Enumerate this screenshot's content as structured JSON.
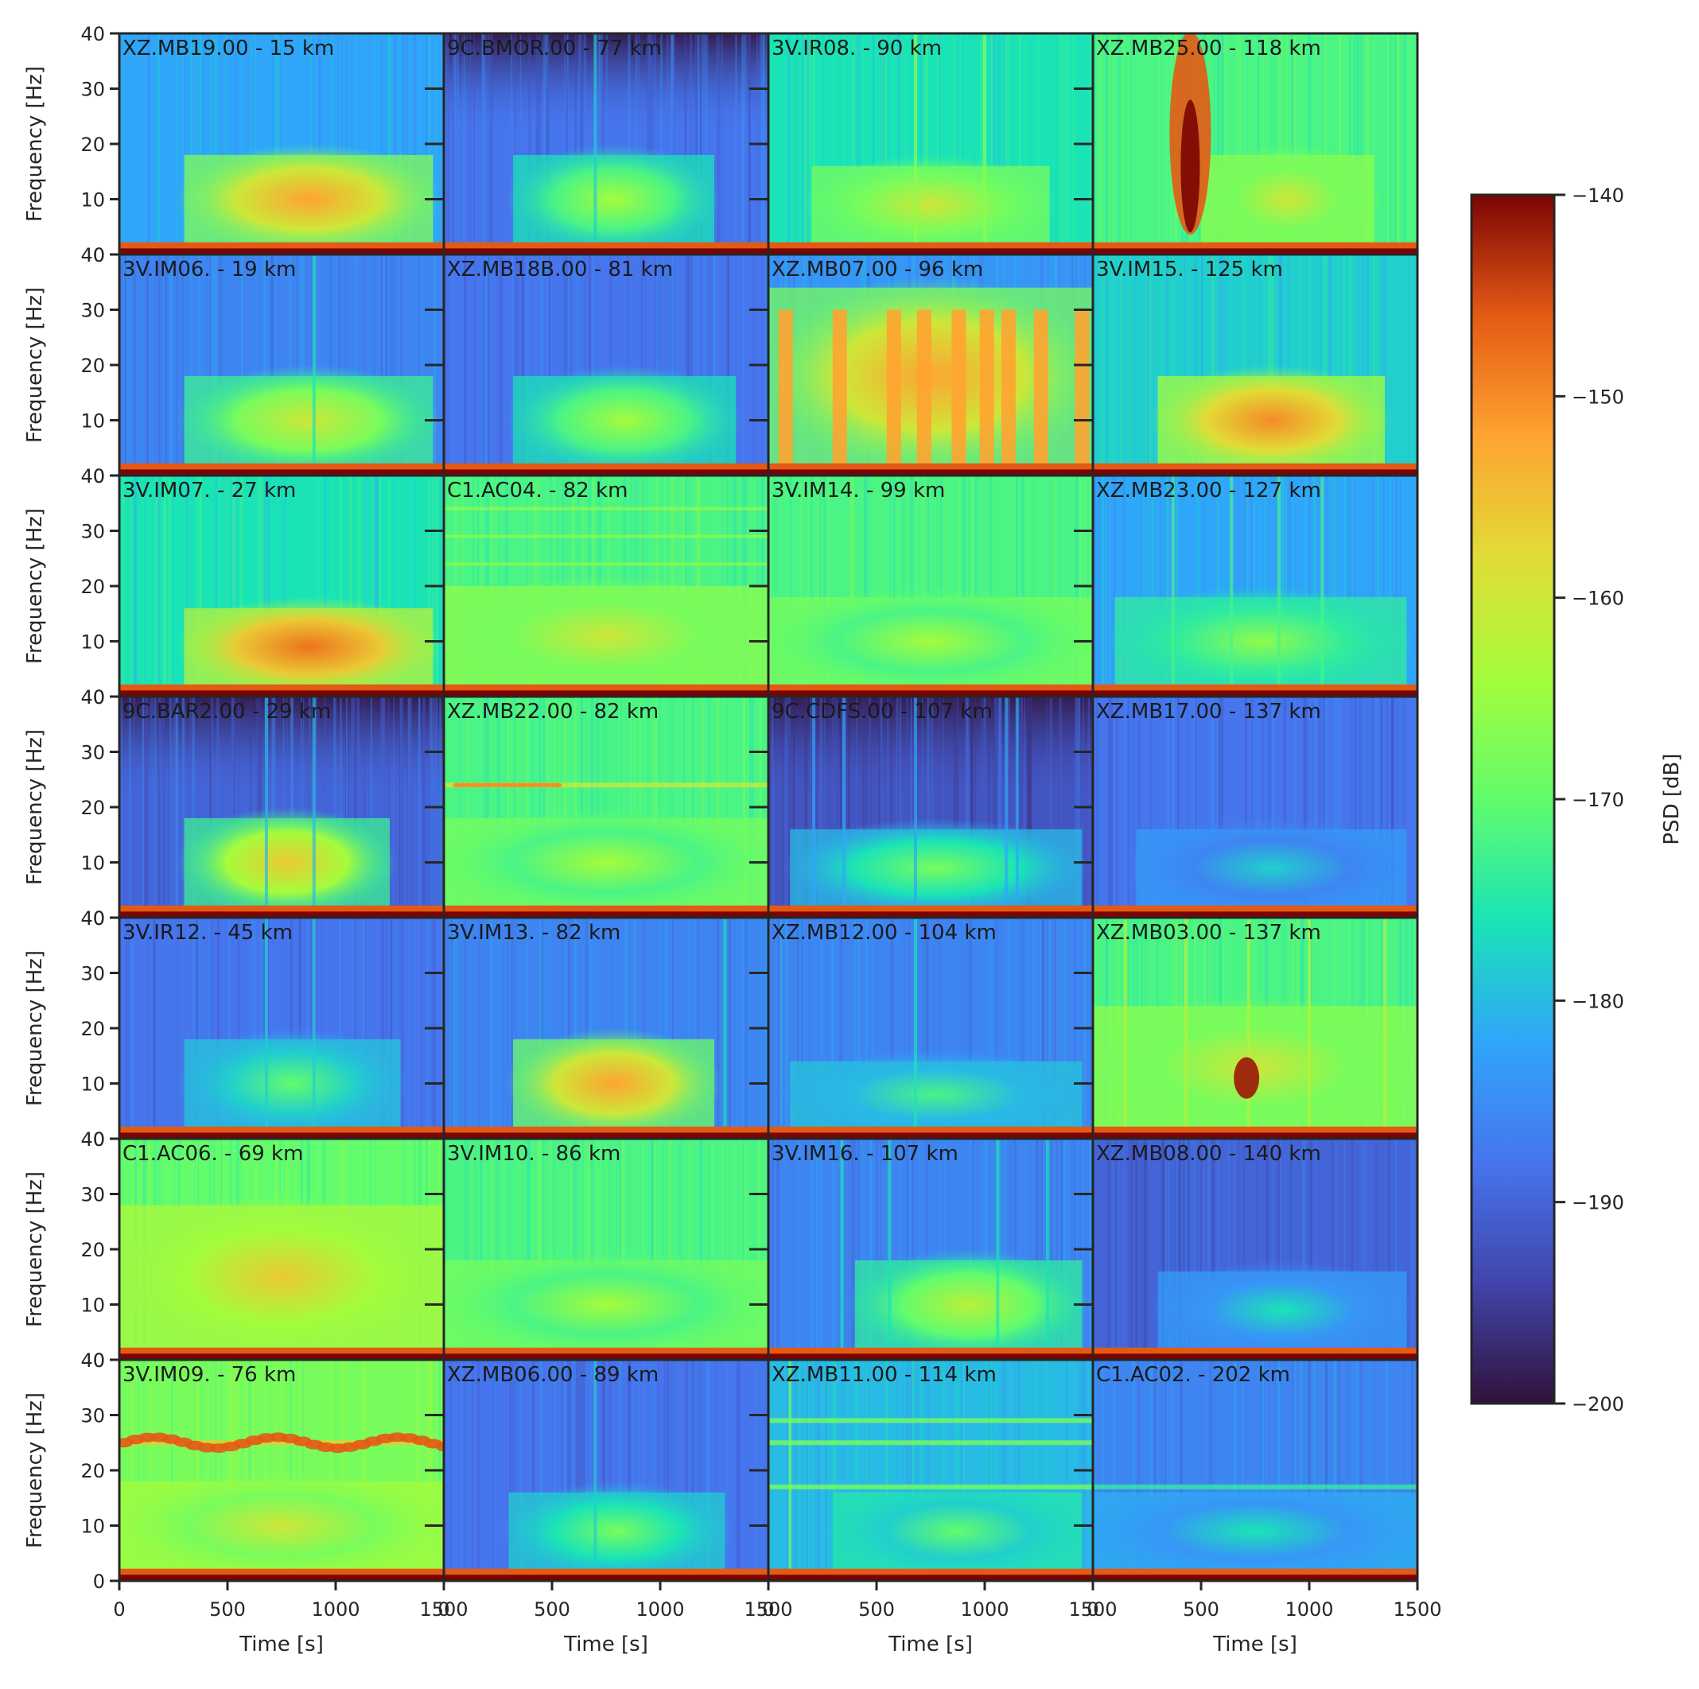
{
  "chart_data": {
    "type": "heatmap",
    "grid": {
      "rows": 7,
      "cols": 4
    },
    "xlabel": "Time [s]",
    "ylabel": "Frequency [Hz]",
    "xlim": [
      0,
      1500
    ],
    "ylim": [
      0,
      40
    ],
    "xticks": [
      0,
      500,
      1000,
      1500
    ],
    "yticks": [
      0,
      10,
      20,
      30,
      40
    ],
    "colorbar": {
      "label": "PSD [dB]",
      "range": [
        -200,
        -140
      ],
      "ticks": [
        -140,
        -150,
        -160,
        -170,
        -180,
        -190,
        -200
      ],
      "tick_labels": [
        "−140",
        "−150",
        "−160",
        "−170",
        "−180",
        "−190",
        "−200"
      ],
      "colormap": "turbo"
    },
    "panels": [
      {
        "label": "XZ.MB19.00 - 15 km",
        "background_psd": -182,
        "energy_psd": -152,
        "energy_band_hz": [
          4,
          14
        ],
        "energy_time_s": [
          300,
          1450
        ],
        "vertical_streaks_s": [],
        "notes": ""
      },
      {
        "label": "9C.BMOR.00 - 77 km",
        "background_psd": -188,
        "energy_psd": -164,
        "energy_band_hz": [
          4,
          14
        ],
        "energy_time_s": [
          320,
          1250
        ],
        "vertical_streaks_s": [
          700
        ],
        "notes": "dark upper band"
      },
      {
        "label": "3V.IR08. - 90 km",
        "background_psd": -176,
        "energy_psd": -160,
        "energy_band_hz": [
          4,
          12
        ],
        "energy_time_s": [
          200,
          1300
        ],
        "vertical_streaks_s": [
          680,
          1000
        ],
        "notes": ""
      },
      {
        "label": "XZ.MB25.00 - 118 km",
        "background_psd": -172,
        "energy_psd": -160,
        "energy_band_hz": [
          4,
          14
        ],
        "energy_time_s": [
          500,
          1300
        ],
        "vertical_streaks_s": [],
        "notes": "strong burst near 450 s"
      },
      {
        "label": "3V.IM06. - 19 km",
        "background_psd": -186,
        "energy_psd": -160,
        "energy_band_hz": [
          4,
          14
        ],
        "energy_time_s": [
          300,
          1450
        ],
        "vertical_streaks_s": [
          900
        ],
        "notes": ""
      },
      {
        "label": "XZ.MB18B.00 - 81 km",
        "background_psd": -188,
        "energy_psd": -164,
        "energy_band_hz": [
          4,
          14
        ],
        "energy_time_s": [
          320,
          1350
        ],
        "vertical_streaks_s": [],
        "notes": ""
      },
      {
        "label": "XZ.MB07.00 - 96 km",
        "background_psd": -184,
        "energy_psd": -152,
        "energy_band_hz": [
          4,
          30
        ],
        "energy_time_s": [
          0,
          1500
        ],
        "vertical_streaks_s": [
          80,
          330,
          580,
          720,
          880,
          1010,
          1110,
          1260,
          1450
        ],
        "notes": "repeating bursts"
      },
      {
        "label": "3V.IM15. - 125 km",
        "background_psd": -178,
        "energy_psd": -150,
        "energy_band_hz": [
          4,
          14
        ],
        "energy_time_s": [
          300,
          1350
        ],
        "vertical_streaks_s": [],
        "notes": ""
      },
      {
        "label": "3V.IM07. - 27 km",
        "background_psd": -176,
        "energy_psd": -148,
        "energy_band_hz": [
          2,
          12
        ],
        "energy_time_s": [
          300,
          1450
        ],
        "vertical_streaks_s": [],
        "notes": ""
      },
      {
        "label": "C1.AC04. - 82 km",
        "background_psd": -172,
        "energy_psd": -160,
        "energy_band_hz": [
          2,
          16
        ],
        "energy_time_s": [
          0,
          1500
        ],
        "vertical_streaks_s": [],
        "notes": "horizontal bands"
      },
      {
        "label": "3V.IM14. - 99 km",
        "background_psd": -172,
        "energy_psd": -164,
        "energy_band_hz": [
          2,
          14
        ],
        "energy_time_s": [
          0,
          1500
        ],
        "vertical_streaks_s": [],
        "notes": ""
      },
      {
        "label": "XZ.MB23.00 - 127 km",
        "background_psd": -182,
        "energy_psd": -166,
        "energy_band_hz": [
          4,
          14
        ],
        "energy_time_s": [
          100,
          1450
        ],
        "vertical_streaks_s": [
          370,
          640,
          860,
          1060
        ],
        "notes": ""
      },
      {
        "label": "9C.BAR2.00 - 29 km",
        "background_psd": -190,
        "energy_psd": -156,
        "energy_band_hz": [
          4,
          14
        ],
        "energy_time_s": [
          300,
          1250
        ],
        "vertical_streaks_s": [
          680,
          900
        ],
        "notes": "dark upper band"
      },
      {
        "label": "XZ.MB22.00 - 82 km",
        "background_psd": -172,
        "energy_psd": -164,
        "energy_band_hz": [
          2,
          14
        ],
        "energy_time_s": [
          0,
          1500
        ],
        "vertical_streaks_s": [],
        "notes": "dotted line near 24 Hz"
      },
      {
        "label": "9C.CDFS.00 - 107 km",
        "background_psd": -192,
        "energy_psd": -168,
        "energy_band_hz": [
          2,
          12
        ],
        "energy_time_s": [
          100,
          1450
        ],
        "vertical_streaks_s": [
          210,
          350,
          680,
          1100,
          1150
        ],
        "notes": "dark upper band"
      },
      {
        "label": "XZ.MB17.00 - 137 km",
        "background_psd": -188,
        "energy_psd": -178,
        "energy_band_hz": [
          2,
          12
        ],
        "energy_time_s": [
          200,
          1450
        ],
        "vertical_streaks_s": [],
        "notes": ""
      },
      {
        "label": "3V.IR12. - 45 km",
        "background_psd": -188,
        "energy_psd": -170,
        "energy_band_hz": [
          4,
          14
        ],
        "energy_time_s": [
          300,
          1300
        ],
        "vertical_streaks_s": [
          680,
          900
        ],
        "notes": ""
      },
      {
        "label": "3V.IM13. - 82 km",
        "background_psd": -186,
        "energy_psd": -152,
        "energy_band_hz": [
          4,
          14
        ],
        "energy_time_s": [
          320,
          1250
        ],
        "vertical_streaks_s": [
          1300
        ],
        "notes": ""
      },
      {
        "label": "XZ.MB12.00 - 104 km",
        "background_psd": -186,
        "energy_psd": -172,
        "energy_band_hz": [
          2,
          10
        ],
        "energy_time_s": [
          100,
          1450
        ],
        "vertical_streaks_s": [
          680
        ],
        "notes": ""
      },
      {
        "label": "XZ.MB03.00 - 137 km",
        "background_psd": -172,
        "energy_psd": -160,
        "energy_band_hz": [
          4,
          20
        ],
        "energy_time_s": [
          0,
          1500
        ],
        "vertical_streaks_s": [
          150,
          430,
          720,
          1000,
          1350
        ],
        "notes": "strong blob near 710 s, 10 Hz"
      },
      {
        "label": "C1.AC06. - 69 km",
        "background_psd": -170,
        "energy_psd": -156,
        "energy_band_hz": [
          4,
          24
        ],
        "energy_time_s": [
          0,
          1500
        ],
        "vertical_streaks_s": [],
        "notes": ""
      },
      {
        "label": "3V.IM10. - 86 km",
        "background_psd": -172,
        "energy_psd": -164,
        "energy_band_hz": [
          2,
          14
        ],
        "energy_time_s": [
          0,
          1500
        ],
        "vertical_streaks_s": [],
        "notes": ""
      },
      {
        "label": "3V.IM16. - 107 km",
        "background_psd": -186,
        "energy_psd": -162,
        "energy_band_hz": [
          4,
          14
        ],
        "energy_time_s": [
          400,
          1450
        ],
        "vertical_streaks_s": [
          340,
          560,
          1060,
          1290
        ],
        "notes": ""
      },
      {
        "label": "XZ.MB08.00 - 140 km",
        "background_psd": -190,
        "energy_psd": -176,
        "energy_band_hz": [
          2,
          12
        ],
        "energy_time_s": [
          300,
          1450
        ],
        "vertical_streaks_s": [],
        "notes": ""
      },
      {
        "label": "3V.IM09. - 76 km",
        "background_psd": -168,
        "energy_psd": -160,
        "energy_band_hz": [
          2,
          14
        ],
        "energy_time_s": [
          0,
          1500
        ],
        "vertical_streaks_s": [],
        "notes": "banded line near 25 Hz"
      },
      {
        "label": "XZ.MB06.00 - 89 km",
        "background_psd": -188,
        "energy_psd": -168,
        "energy_band_hz": [
          4,
          12
        ],
        "energy_time_s": [
          300,
          1300
        ],
        "vertical_streaks_s": [
          700
        ],
        "notes": ""
      },
      {
        "label": "XZ.MB11.00 - 114 km",
        "background_psd": -180,
        "energy_psd": -170,
        "energy_band_hz": [
          4,
          12
        ],
        "energy_time_s": [
          300,
          1450
        ],
        "vertical_streaks_s": [
          100
        ],
        "notes": "horizontal lines near 17, 25, 29 Hz"
      },
      {
        "label": "C1.AC02. - 202 km",
        "background_psd": -186,
        "energy_psd": -176,
        "energy_band_hz": [
          2,
          12
        ],
        "energy_time_s": [
          0,
          1500
        ],
        "vertical_streaks_s": [],
        "notes": "horizontal line near 17 Hz"
      }
    ]
  }
}
